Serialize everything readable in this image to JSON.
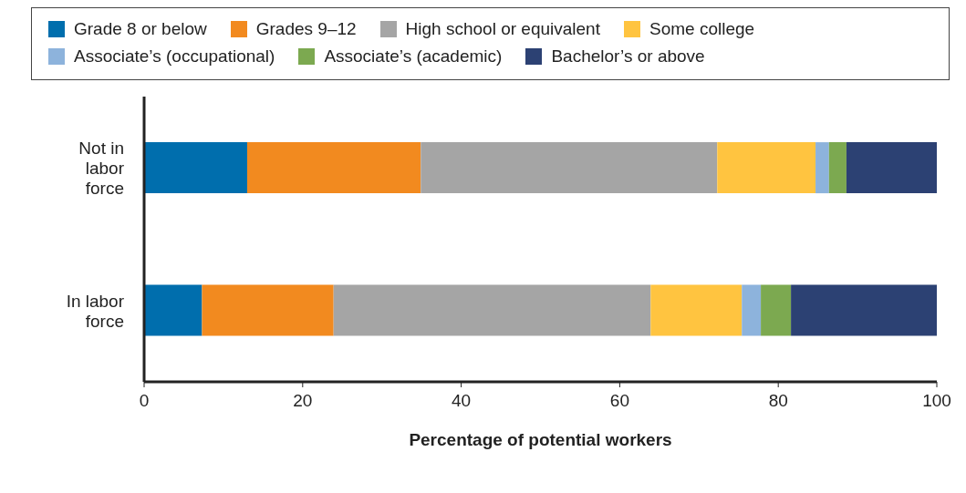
{
  "chart_data": {
    "type": "bar",
    "orientation": "horizontal",
    "stacked": true,
    "xlabel": "Percentage of potential workers",
    "categories": [
      "Not in labor force",
      "In labor force"
    ],
    "series": [
      {
        "name": "Grade 8 or below",
        "color": "#006ead",
        "values": [
          13.0,
          7.3
        ]
      },
      {
        "name": "Grades 9–12",
        "color": "#f28a1f",
        "values": [
          21.9,
          16.6
        ]
      },
      {
        "name": "High school or equivalent",
        "color": "#a5a5a5",
        "values": [
          37.4,
          40.0
        ]
      },
      {
        "name": "Some college",
        "color": "#ffc440",
        "values": [
          12.4,
          11.5
        ]
      },
      {
        "name": "Associate’s (occupational)",
        "color": "#8db3dc",
        "values": [
          1.7,
          2.4
        ]
      },
      {
        "name": "Associate’s (academic)",
        "color": "#7ca950",
        "values": [
          2.2,
          3.8
        ]
      },
      {
        "name": "Bachelor’s or above",
        "color": "#2c4173",
        "values": [
          11.4,
          18.4
        ]
      }
    ],
    "xlim": [
      0,
      100
    ],
    "xticks": [
      0,
      20,
      40,
      60,
      80,
      100
    ],
    "legend": "top",
    "grid": false
  }
}
